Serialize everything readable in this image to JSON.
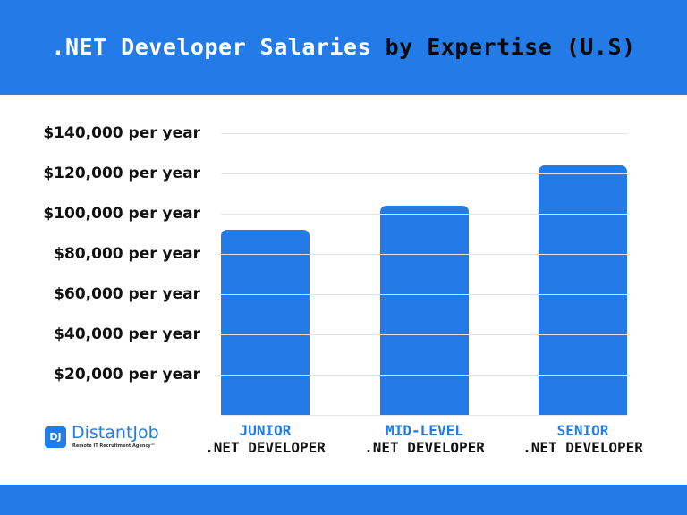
{
  "header": {
    "title_part1": ".NET Developer Salaries",
    "title_part2": "by Expertise (U.S)"
  },
  "colors": {
    "accent": "#237BE8",
    "text": "#111111",
    "grid": "#E3E3E3"
  },
  "logo": {
    "mark": "DJ",
    "name": "DistantJob",
    "tagline": "Remote IT Recruitment Agency™"
  },
  "chart_data": {
    "type": "bar",
    "title": ".NET Developer Salaries by Expertise (U.S)",
    "categories": [
      "JUNIOR .NET DEVELOPER",
      "MID-LEVEL .NET DEVELOPER",
      "SENIOR .NET DEVELOPER"
    ],
    "category_lines": [
      [
        "JUNIOR",
        ".NET DEVELOPER"
      ],
      [
        "MID-LEVEL",
        ".NET DEVELOPER"
      ],
      [
        "SENIOR",
        ".NET DEVELOPER"
      ]
    ],
    "values": [
      92000,
      104000,
      124000
    ],
    "xlabel": "",
    "ylabel": "",
    "ylim": [
      0,
      140000
    ],
    "yticks": [
      20000,
      40000,
      60000,
      80000,
      100000,
      120000,
      140000
    ],
    "ytick_labels": [
      "$20,000 per year",
      "$40,000 per year",
      "$60,000 per year",
      "$80,000 per year",
      "$100,000 per year",
      "$120,000 per year",
      "$140,000 per year"
    ],
    "grid": true,
    "legend": null
  }
}
